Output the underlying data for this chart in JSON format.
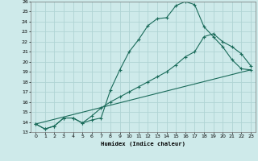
{
  "xlabel": "Humidex (Indice chaleur)",
  "ylabel": "",
  "bg_color": "#ceeaea",
  "grid_color": "#b0d4d4",
  "line_color": "#1a6b5a",
  "xlim": [
    -0.5,
    23.5
  ],
  "ylim": [
    13,
    26
  ],
  "xticks": [
    0,
    1,
    2,
    3,
    4,
    5,
    6,
    7,
    8,
    9,
    10,
    11,
    12,
    13,
    14,
    15,
    16,
    17,
    18,
    19,
    20,
    21,
    22,
    23
  ],
  "yticks": [
    13,
    14,
    15,
    16,
    17,
    18,
    19,
    20,
    21,
    22,
    23,
    24,
    25,
    26
  ],
  "line1_x": [
    0,
    1,
    2,
    3,
    4,
    5,
    6,
    7,
    8,
    9,
    10,
    11,
    12,
    13,
    14,
    15,
    16,
    17,
    18,
    19,
    20,
    21,
    22,
    23
  ],
  "line1_y": [
    13.8,
    13.3,
    13.6,
    14.4,
    14.4,
    13.9,
    14.2,
    14.4,
    17.2,
    19.2,
    21.0,
    22.2,
    23.6,
    24.3,
    24.4,
    25.6,
    26.0,
    25.7,
    23.5,
    22.5,
    21.5,
    20.2,
    19.3,
    19.2
  ],
  "line2_x": [
    0,
    1,
    2,
    3,
    4,
    5,
    6,
    7,
    8,
    9,
    10,
    11,
    12,
    13,
    14,
    15,
    16,
    17,
    18,
    19,
    20,
    21,
    22,
    23
  ],
  "line2_y": [
    13.8,
    13.3,
    13.6,
    14.4,
    14.4,
    13.9,
    14.6,
    15.4,
    16.0,
    16.5,
    17.0,
    17.5,
    18.0,
    18.5,
    19.0,
    19.7,
    20.5,
    21.0,
    22.5,
    22.8,
    22.0,
    21.5,
    20.8,
    19.6
  ],
  "line3_x": [
    0,
    23
  ],
  "line3_y": [
    13.8,
    19.2
  ]
}
